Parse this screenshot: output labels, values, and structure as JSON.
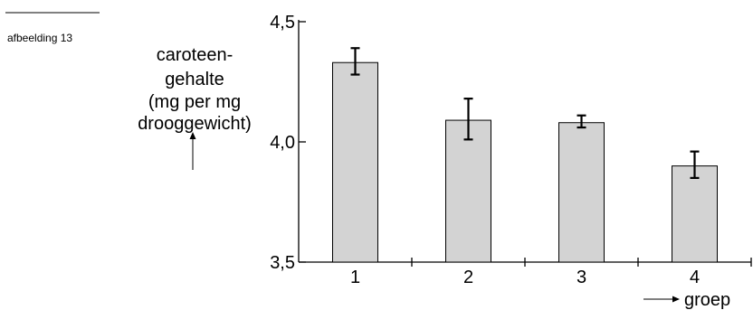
{
  "figure_label": "afbeelding 13",
  "chart_data": {
    "type": "bar",
    "categories": [
      "1",
      "2",
      "3",
      "4"
    ],
    "values": [
      4.33,
      4.09,
      4.08,
      3.9
    ],
    "error_low": [
      4.28,
      4.01,
      4.06,
      3.85
    ],
    "error_high": [
      4.39,
      4.18,
      4.11,
      3.96
    ],
    "ylabel_lines": [
      "caroteen-",
      "gehalte",
      "(mg per mg",
      "drooggewicht)"
    ],
    "xlabel": "groep",
    "ylim": [
      3.5,
      4.5
    ],
    "yticks": [
      3.5,
      4.0,
      4.5
    ],
    "ytick_labels": [
      "3,5",
      "4,0",
      "4,5"
    ],
    "bar_color": "#d3d3d3",
    "grid": false,
    "legend": "none"
  }
}
